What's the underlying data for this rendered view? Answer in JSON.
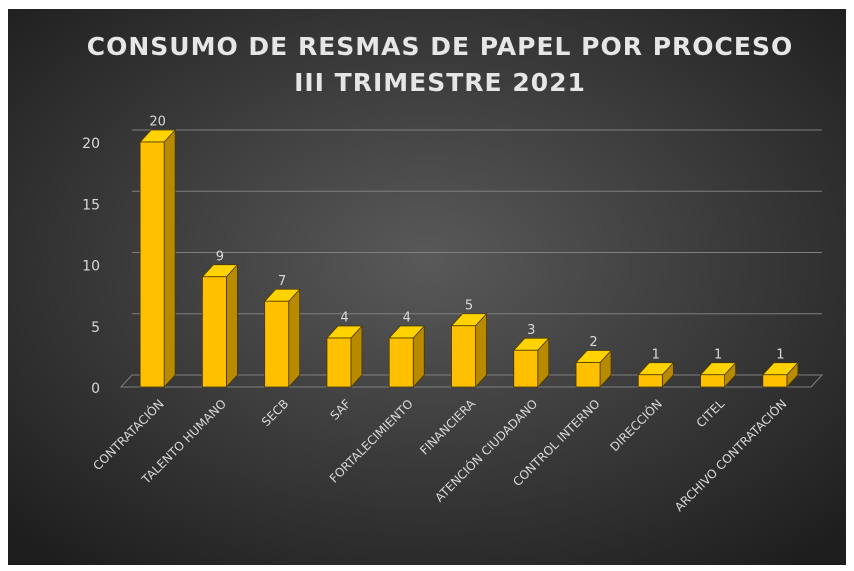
{
  "chart_data": {
    "type": "bar3d",
    "title": "CONSUMO DE RESMAS DE PAPEL POR PROCESO",
    "subtitle": "III TRIMESTRE 2021",
    "categories": [
      "CONTRATACIÓN",
      "TALENTO HUMANO",
      "SECB",
      "SAF",
      "FORTALECIMIENTO",
      "FINANCIERA",
      "ATENCIÓN CIUDADANO",
      "CONTROL INTERNO",
      "DIRECCIÓN",
      "CITEL",
      "ARCHIVO CONTRATACIÓN"
    ],
    "values": [
      20,
      9,
      7,
      4,
      4,
      5,
      3,
      2,
      1,
      1,
      1
    ],
    "color": "#ffc000",
    "ylim": [
      0,
      20
    ],
    "yticks": [
      0,
      5,
      10,
      15,
      20
    ],
    "grid": true
  }
}
